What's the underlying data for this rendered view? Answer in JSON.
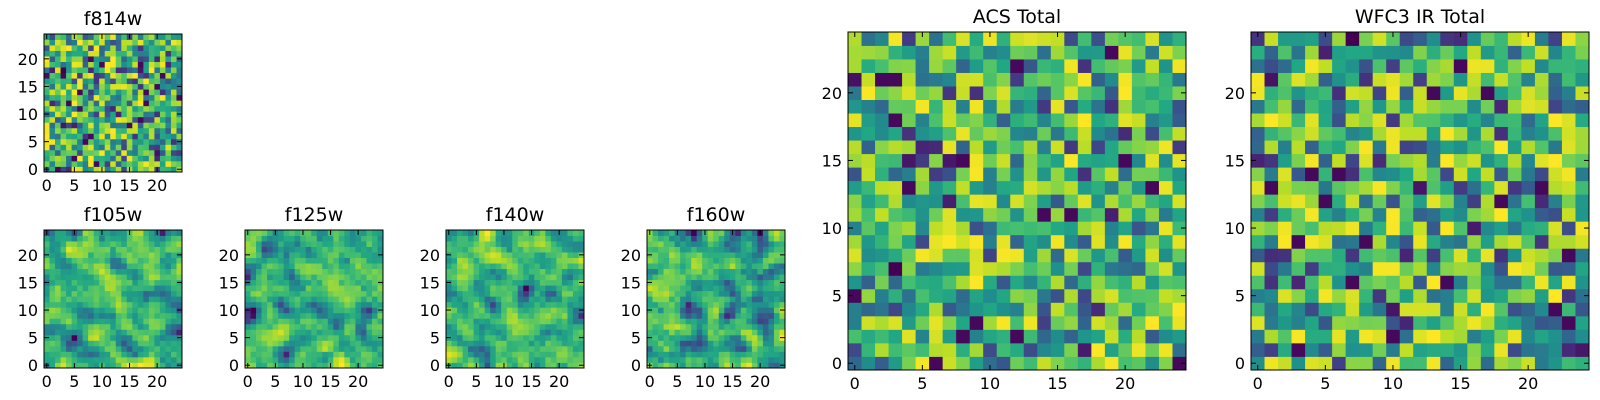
{
  "figure": {
    "title": ""
  },
  "colormap": {
    "name": "viridis",
    "low": "#440154",
    "mid": "#21918c",
    "high": "#fde725"
  },
  "chart_data": [
    {
      "type": "heatmap",
      "title": "f814w",
      "grid_size": 25,
      "xlim": [
        0,
        24
      ],
      "ylim": [
        0,
        24
      ],
      "xticks": [
        0,
        5,
        10,
        15,
        20
      ],
      "yticks": [
        0,
        5,
        10,
        15,
        20
      ],
      "texture": "fine-noise",
      "seed": 814
    },
    {
      "type": "heatmap",
      "title": "f105w",
      "grid_size": 25,
      "xlim": [
        0,
        24
      ],
      "ylim": [
        0,
        24
      ],
      "xticks": [
        0,
        5,
        10,
        15,
        20
      ],
      "yticks": [
        0,
        5,
        10,
        15,
        20
      ],
      "texture": "smooth-noise",
      "seed": 105
    },
    {
      "type": "heatmap",
      "title": "f125w",
      "grid_size": 25,
      "xlim": [
        0,
        24
      ],
      "ylim": [
        0,
        24
      ],
      "xticks": [
        0,
        5,
        10,
        15,
        20
      ],
      "yticks": [
        0,
        5,
        10,
        15,
        20
      ],
      "texture": "smooth-noise",
      "seed": 125
    },
    {
      "type": "heatmap",
      "title": "f140w",
      "grid_size": 25,
      "xlim": [
        0,
        24
      ],
      "ylim": [
        0,
        24
      ],
      "xticks": [
        0,
        5,
        10,
        15,
        20
      ],
      "yticks": [
        0,
        5,
        10,
        15,
        20
      ],
      "texture": "smooth-noise",
      "seed": 140
    },
    {
      "type": "heatmap",
      "title": "f160w",
      "grid_size": 25,
      "xlim": [
        0,
        24
      ],
      "ylim": [
        0,
        24
      ],
      "xticks": [
        0,
        5,
        10,
        15,
        20
      ],
      "yticks": [
        0,
        5,
        10,
        15,
        20
      ],
      "texture": "smooth-noise",
      "seed": 160
    },
    {
      "type": "heatmap",
      "title": "ACS Total",
      "grid_size": 25,
      "xlim": [
        0,
        24
      ],
      "ylim": [
        0,
        24
      ],
      "xticks": [
        0,
        5,
        10,
        15,
        20
      ],
      "yticks": [
        0,
        5,
        10,
        15,
        20
      ],
      "texture": "coarse-noise",
      "seed": 1001
    },
    {
      "type": "heatmap",
      "title": "WFC3 IR Total",
      "grid_size": 25,
      "xlim": [
        0,
        24
      ],
      "ylim": [
        0,
        24
      ],
      "xticks": [
        0,
        5,
        10,
        15,
        20
      ],
      "yticks": [
        0,
        5,
        10,
        15,
        20
      ],
      "texture": "coarse-noise",
      "seed": 2002
    }
  ]
}
